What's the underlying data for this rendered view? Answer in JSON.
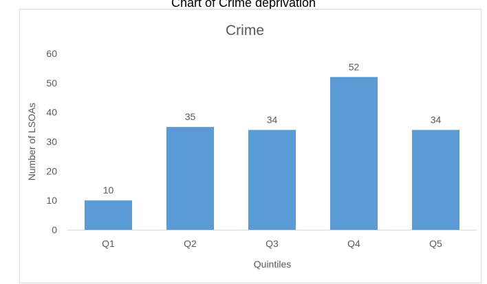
{
  "caption": "Chart of Crime deprivation",
  "chart_data": {
    "type": "bar",
    "title": "Crime",
    "xlabel": "Quintiles",
    "ylabel": "Number of LSOAs",
    "categories": [
      "Q1",
      "Q2",
      "Q3",
      "Q4",
      "Q5"
    ],
    "values": [
      10,
      35,
      34,
      52,
      34
    ],
    "ylim": [
      0,
      60
    ],
    "yticks": [
      0,
      10,
      20,
      30,
      40,
      50,
      60
    ],
    "grid": false,
    "legend": "none",
    "data_labels": true,
    "colors": {
      "bar": "#5b9bd5",
      "axis": "#d9d9d9",
      "text": "#595959",
      "title": "#595959"
    }
  }
}
